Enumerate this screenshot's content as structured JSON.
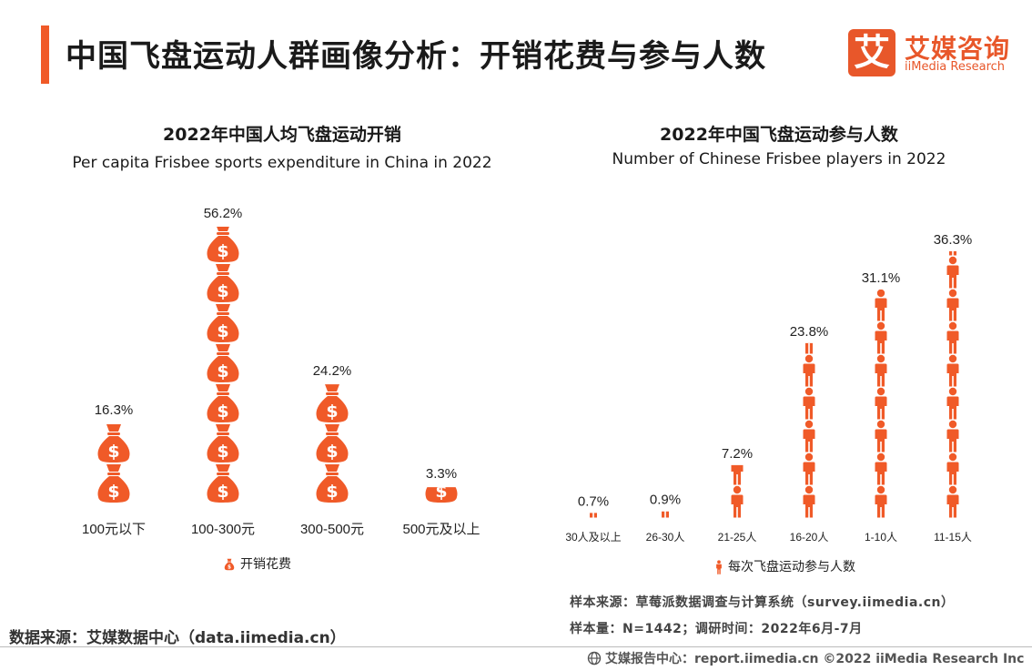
{
  "header": {
    "title": "中国飞盘运动人群画像分析：开销花费与参与人数",
    "accent_color": "#f05a28"
  },
  "logo": {
    "glyph": "艾",
    "name_cn": "艾媒咨询",
    "name_en": "iiMedia Research",
    "color": "#e8572a"
  },
  "chart_data": [
    {
      "type": "bar",
      "title_cn": "2022年中国人均飞盘运动开销",
      "title_en": "Per capita Frisbee sports expenditure in China in 2022",
      "categories": [
        "100元以下",
        "100-300元",
        "300-500元",
        "500元及以上"
      ],
      "series": [
        {
          "name": "开销花费",
          "values": [
            16.3,
            56.2,
            24.2,
            3.3
          ]
        }
      ],
      "value_labels": [
        "16.3%",
        "56.2%",
        "24.2%",
        "3.3%"
      ],
      "unit": "%",
      "mark": "money-bag-icon",
      "color": "#f05a28",
      "legend": "bottom-center"
    },
    {
      "type": "bar",
      "title_cn": "2022年中国飞盘运动参与人数",
      "title_en": "Number of Chinese Frisbee players in 2022",
      "categories": [
        "30人及以上",
        "26-30人",
        "21-25人",
        "16-20人",
        "1-10人",
        "11-15人"
      ],
      "series": [
        {
          "name": "每次飞盘运动参与人数",
          "values": [
            0.7,
            0.9,
            7.2,
            23.8,
            31.1,
            36.3
          ]
        }
      ],
      "value_labels": [
        "0.7%",
        "0.9%",
        "7.2%",
        "23.8%",
        "31.1%",
        "36.3%"
      ],
      "unit": "%",
      "mark": "person-icon",
      "color": "#f05a28",
      "legend": "bottom-center"
    }
  ],
  "sources": {
    "left": "数据来源：艾媒数据中心（data.iimedia.cn）",
    "survey": "样本来源：草莓派数据调查与计算系统（survey.iimedia.cn）",
    "sample": "样本量：N=1442；调研时间：2022年6月-7月"
  },
  "footer": {
    "text": "艾媒报告中心：report.iimedia.cn  ©2022  iiMedia Research  Inc"
  }
}
